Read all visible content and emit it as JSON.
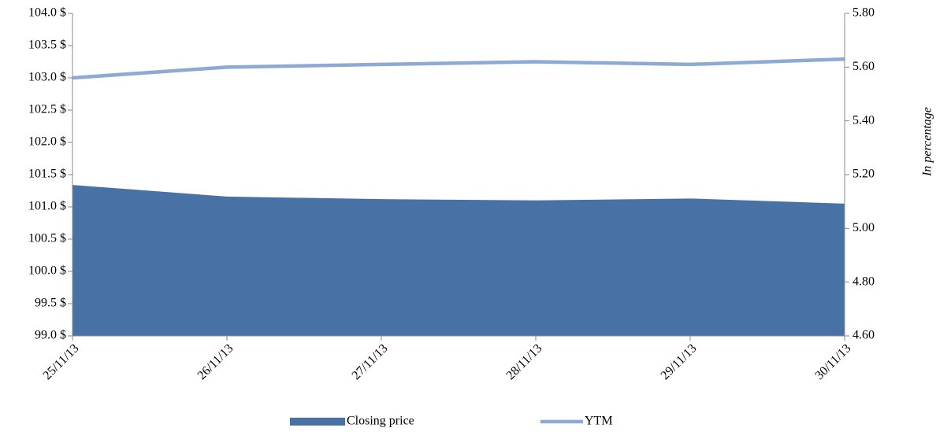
{
  "chart_data": {
    "type": "area-line",
    "categories": [
      "25/11/13",
      "26/11/13",
      "27/11/13",
      "28/11/13",
      "29/11/13",
      "30/11/13"
    ],
    "series": [
      {
        "name": "Closing price",
        "color": "#4872a6",
        "type": "area",
        "values": [
          101.34,
          101.16,
          101.12,
          101.1,
          101.13,
          101.05
        ]
      },
      {
        "name": "YTM",
        "color": "#8eaad4",
        "type": "line",
        "axis": "y2",
        "values": [
          5.56,
          5.6,
          5.61,
          5.62,
          5.61,
          5.63
        ]
      }
    ],
    "ylim": [
      99,
      104
    ],
    "yticks": [
      {
        "value": 99,
        "label": "99.0 $"
      },
      {
        "value": 99.5,
        "label": "99.5 $"
      },
      {
        "value": 100,
        "label": "100.0 $"
      },
      {
        "value": 100.5,
        "label": "100.5 $"
      },
      {
        "value": 101,
        "label": "101.0 $"
      },
      {
        "value": 101.5,
        "label": "101.5 $"
      },
      {
        "value": 102,
        "label": "102.0 $"
      },
      {
        "value": 102.5,
        "label": "102.5 $"
      },
      {
        "value": 103,
        "label": "103.0 $"
      },
      {
        "value": 103.5,
        "label": "103.5 $"
      },
      {
        "value": 104,
        "label": "104.0 $"
      }
    ],
    "y2lim": [
      4.6,
      5.8
    ],
    "y2ticks": [
      {
        "value": 4.6,
        "label": "4.60"
      },
      {
        "value": 4.8,
        "label": "4.80"
      },
      {
        "value": 5,
        "label": "5.00"
      },
      {
        "value": 5.2,
        "label": "5.20"
      },
      {
        "value": 5.4,
        "label": "5.40"
      },
      {
        "value": 5.6,
        "label": "5.60"
      },
      {
        "value": 5.8,
        "label": "5.80"
      }
    ],
    "y2label": "In percentage",
    "legend": "bottom"
  }
}
